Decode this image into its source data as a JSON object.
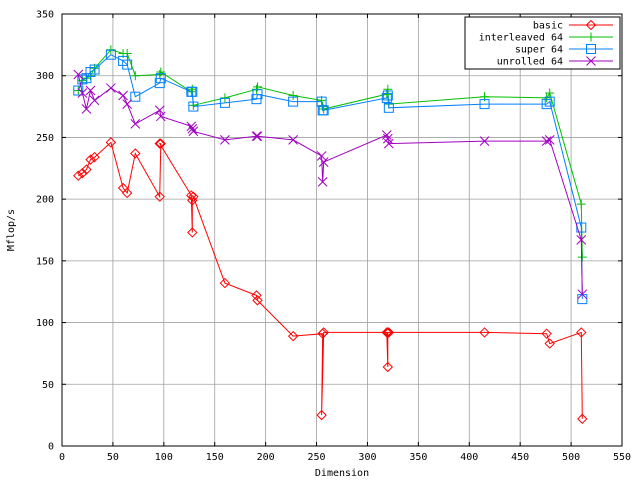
{
  "chart_data": {
    "type": "line",
    "title": "",
    "xlabel": "Dimension",
    "ylabel": "Mflop/s",
    "xlim": [
      0,
      550
    ],
    "ylim": [
      0,
      350
    ],
    "x_ticks": [
      "0",
      "50",
      "100",
      "150",
      "200",
      "250",
      "300",
      "350",
      "400",
      "450",
      "500",
      "550"
    ],
    "y_ticks": [
      "0",
      "50",
      "100",
      "150",
      "200",
      "250",
      "300",
      "350"
    ],
    "grid": true,
    "legend_position": "top-right",
    "series": [
      {
        "name": "basic",
        "color": "#ff0000",
        "marker": "diamond",
        "x": [
          16,
          20,
          24,
          28,
          32,
          48,
          60,
          64,
          72,
          96,
          97,
          96,
          127,
          128,
          128,
          129,
          160,
          191,
          192,
          227,
          256,
          255,
          257,
          319,
          320,
          320,
          321,
          415,
          476,
          479,
          510,
          511
        ],
        "y": [
          219,
          221,
          224,
          232,
          234,
          246,
          209,
          205,
          237,
          202,
          245,
          245,
          203,
          173,
          199,
          202,
          132,
          122,
          118,
          89,
          91,
          25,
          92,
          92,
          64,
          92,
          92,
          92,
          91,
          83,
          92,
          22
        ]
      },
      {
        "name": "interleaved 64",
        "color": "#00c000",
        "marker": "plus",
        "x": [
          16,
          20,
          24,
          28,
          32,
          48,
          60,
          64,
          72,
          96,
          97,
          127,
          128,
          129,
          160,
          191,
          192,
          227,
          255,
          256,
          257,
          319,
          320,
          321,
          415,
          476,
          479,
          510,
          511
        ],
        "y": [
          288,
          296,
          298,
          300,
          306,
          321,
          318,
          318,
          300,
          301,
          303,
          287,
          289,
          276,
          282,
          289,
          291,
          284,
          280,
          275,
          273,
          285,
          289,
          277,
          283,
          282,
          286,
          196,
          153
        ]
      },
      {
        "name": "super 64",
        "color": "#0080ff",
        "marker": "square",
        "x": [
          16,
          20,
          24,
          28,
          32,
          48,
          60,
          64,
          72,
          96,
          97,
          127,
          128,
          129,
          160,
          191,
          192,
          227,
          255,
          256,
          257,
          319,
          320,
          321,
          415,
          476,
          479,
          510,
          511
        ],
        "y": [
          288,
          297,
          298,
          303,
          305,
          317,
          312,
          309,
          283,
          294,
          298,
          287,
          287,
          275,
          278,
          281,
          285,
          279,
          279,
          272,
          272,
          282,
          284,
          274,
          277,
          277,
          279,
          177,
          119
        ]
      },
      {
        "name": "unrolled 64",
        "color": "#a000c0",
        "marker": "x",
        "x": [
          16,
          20,
          24,
          28,
          32,
          48,
          60,
          64,
          72,
          96,
          97,
          127,
          128,
          129,
          160,
          191,
          192,
          227,
          255,
          256,
          257,
          319,
          320,
          321,
          415,
          476,
          479,
          510,
          511
        ],
        "y": [
          301,
          286,
          273,
          288,
          280,
          290,
          284,
          277,
          261,
          272,
          267,
          259,
          257,
          255,
          248,
          251,
          251,
          248,
          235,
          214,
          230,
          252,
          249,
          245,
          247,
          247,
          248,
          167,
          123
        ]
      }
    ]
  }
}
